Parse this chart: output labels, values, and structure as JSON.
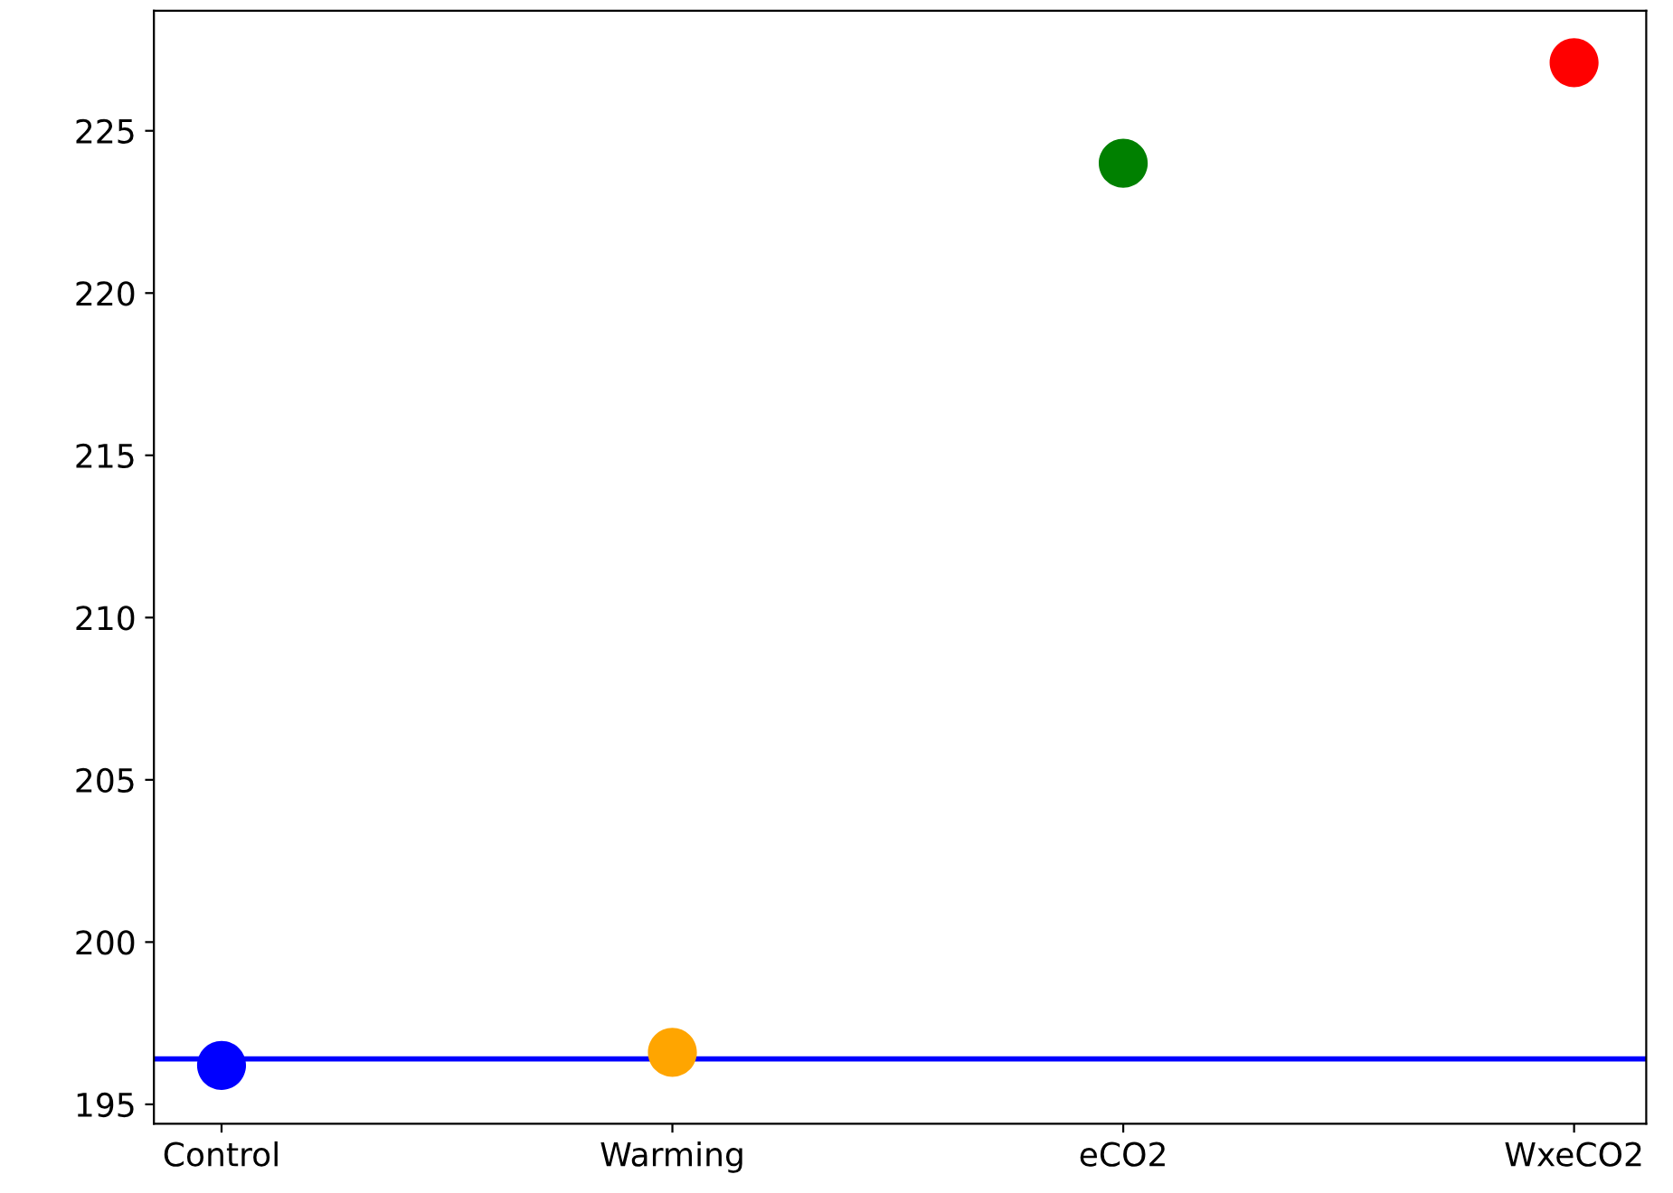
{
  "chart_data": {
    "type": "scatter",
    "categories": [
      "Control",
      "Warming",
      "eCO2",
      "WxeCO2"
    ],
    "values": [
      196.2,
      196.6,
      224.0,
      227.1
    ],
    "colors": [
      "#0000ff",
      "#ffa500",
      "#008000",
      "#ff0000"
    ],
    "marker": "circle",
    "ylim": [
      194.4,
      228.7
    ],
    "yticks": [
      195,
      200,
      205,
      210,
      215,
      220,
      225
    ],
    "ref_lines": [
      {
        "axis": "y",
        "value": 196.4,
        "color": "#0000ff",
        "line_style": "solid"
      }
    ],
    "grid": false,
    "legend": false
  }
}
